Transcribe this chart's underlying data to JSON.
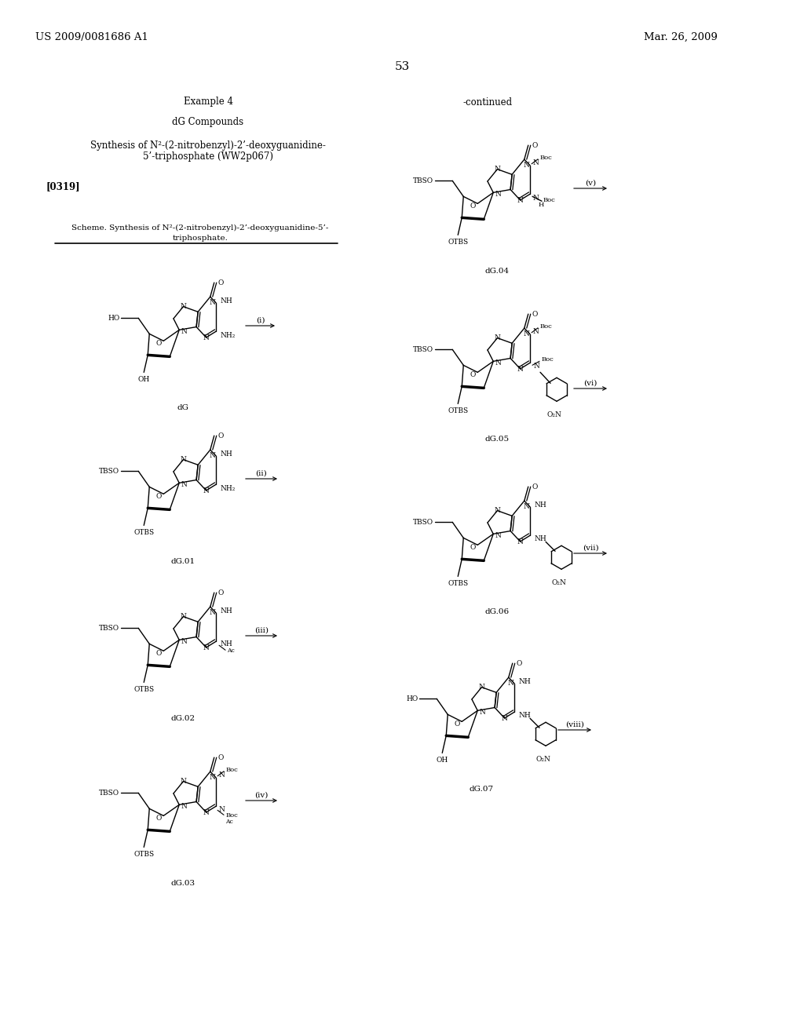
{
  "background_color": "#ffffff",
  "page_number": "53",
  "header_left": "US 2009/0081686 A1",
  "header_right": "Mar. 26, 2009",
  "title1": "Example 4",
  "title2": "dG Compounds",
  "title3_line1": "Synthesis of N²-(2-nitrobenzyl)-2’-deoxyguanidine-",
  "title3_line2": "5’-triphosphate (WW2p067)",
  "paragraph": "[0319]",
  "scheme_text_line1": "Scheme. Synthesis of N²-(2-nitrobenzyl)-2’-deoxyguanidine-5’-",
  "scheme_text_line2": "triphosphate.",
  "continued": "-continued",
  "compounds_left": [
    "dG",
    "dG.01",
    "dG.02",
    "dG.03"
  ],
  "compounds_right": [
    "dG.04",
    "dG.05",
    "dG.06",
    "dG.07"
  ],
  "reaction_labels": [
    "(i)",
    "(ii)",
    "(iii)",
    "(iv)",
    "(v)",
    "(vi)",
    "(vii)",
    "(viii)"
  ]
}
